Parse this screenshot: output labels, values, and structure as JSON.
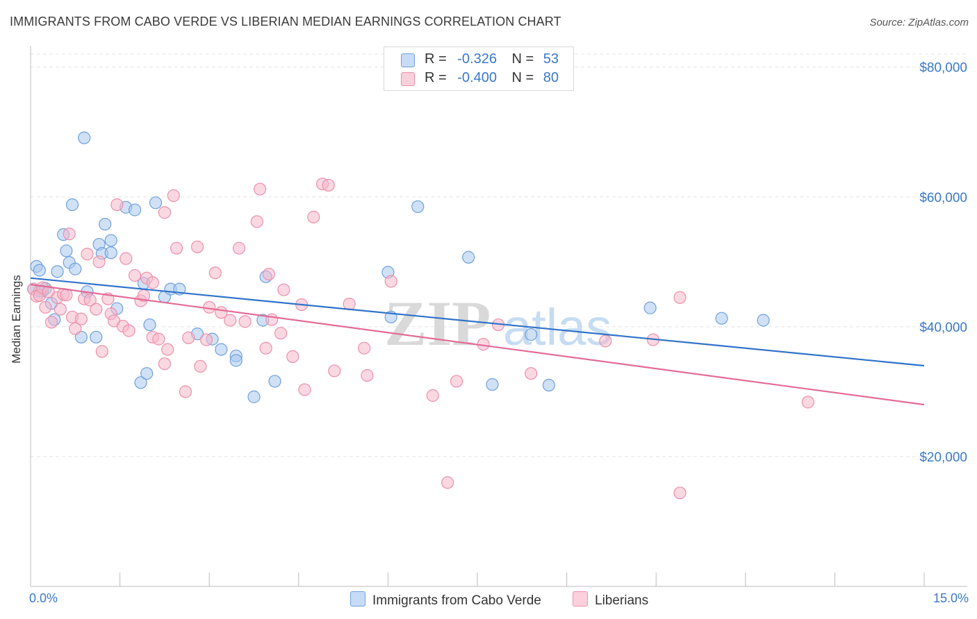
{
  "header": {
    "title": "IMMIGRANTS FROM CABO VERDE VS LIBERIAN MEDIAN EARNINGS CORRELATION CHART",
    "source": "Source: ZipAtlas.com"
  },
  "watermark": "ZIPatlas",
  "legend_top": {
    "rows": [
      {
        "r_label": "R =",
        "r_value": "-0.326",
        "n_label": "N =",
        "n_value": "53",
        "color": "#a9c8ee"
      },
      {
        "r_label": "R =",
        "r_value": "-0.400",
        "n_label": "N =",
        "n_value": "80",
        "color": "#f5b8cb"
      }
    ]
  },
  "legend_bottom": [
    {
      "label": "Immigrants from Cabo Verde",
      "color": "#a9c8ee"
    },
    {
      "label": "Liberians",
      "color": "#f5b8cb"
    }
  ],
  "chart_data": {
    "type": "scatter",
    "title": "IMMIGRANTS FROM CABO VERDE VS LIBERIAN MEDIAN EARNINGS CORRELATION CHART",
    "xlabel": "",
    "ylabel": "Median Earnings",
    "xlim": [
      0,
      15
    ],
    "ylim": [
      0,
      82000
    ],
    "x_tick_labels": [
      "0.0%",
      "15.0%"
    ],
    "y_ticks": [
      20000,
      40000,
      60000,
      80000
    ],
    "y_tick_labels": [
      "$20,000",
      "$40,000",
      "$60,000",
      "$80,000"
    ],
    "grid": true,
    "legend_position": "top-center",
    "series": [
      {
        "name": "Immigrants from Cabo Verde",
        "color": "#6fa0dc",
        "fill": "#a9c8ee",
        "trend": {
          "x": [
            0,
            15
          ],
          "y": [
            47500,
            34000
          ],
          "color": "#2f72c9"
        },
        "points": [
          [
            0.05,
            45800
          ],
          [
            0.1,
            49300
          ],
          [
            0.15,
            48700
          ],
          [
            0.2,
            45500
          ],
          [
            0.25,
            45900
          ],
          [
            0.35,
            43600
          ],
          [
            0.4,
            41100
          ],
          [
            0.45,
            48500
          ],
          [
            0.55,
            54200
          ],
          [
            0.6,
            51700
          ],
          [
            0.65,
            49900
          ],
          [
            0.7,
            58800
          ],
          [
            0.75,
            48900
          ],
          [
            0.85,
            38400
          ],
          [
            0.95,
            45400
          ],
          [
            1.1,
            38400
          ],
          [
            1.15,
            52700
          ],
          [
            1.2,
            51300
          ],
          [
            1.25,
            55800
          ],
          [
            1.35,
            53300
          ],
          [
            1.35,
            51400
          ],
          [
            1.45,
            42800
          ],
          [
            1.6,
            58400
          ],
          [
            1.75,
            58000
          ],
          [
            1.85,
            31400
          ],
          [
            1.9,
            46700
          ],
          [
            1.95,
            32800
          ],
          [
            2.0,
            40300
          ],
          [
            2.1,
            59100
          ],
          [
            2.25,
            44600
          ],
          [
            2.35,
            45800
          ],
          [
            2.5,
            45800
          ],
          [
            2.8,
            38900
          ],
          [
            3.05,
            38100
          ],
          [
            3.2,
            36500
          ],
          [
            3.45,
            35500
          ],
          [
            3.45,
            34800
          ],
          [
            3.75,
            29200
          ],
          [
            3.9,
            41000
          ],
          [
            3.95,
            47700
          ],
          [
            4.1,
            31600
          ],
          [
            0.9,
            69100
          ],
          [
            6.0,
            48400
          ],
          [
            6.05,
            41500
          ],
          [
            6.5,
            58500
          ],
          [
            7.35,
            50700
          ],
          [
            7.75,
            31100
          ],
          [
            8.4,
            38800
          ],
          [
            8.7,
            31000
          ],
          [
            10.4,
            42900
          ],
          [
            11.6,
            41300
          ],
          [
            12.3,
            41000
          ],
          [
            0.15,
            45500
          ]
        ]
      },
      {
        "name": "Liberians",
        "color": "#ec8fab",
        "fill": "#f5b8cb",
        "trend": {
          "x": [
            0,
            15
          ],
          "y": [
            46500,
            28000
          ],
          "color": "#e26b95"
        },
        "points": [
          [
            0.05,
            45800
          ],
          [
            0.1,
            44700
          ],
          [
            0.15,
            44800
          ],
          [
            0.2,
            46000
          ],
          [
            0.25,
            43000
          ],
          [
            0.3,
            45400
          ],
          [
            0.35,
            40700
          ],
          [
            0.45,
            44500
          ],
          [
            0.5,
            42700
          ],
          [
            0.55,
            45000
          ],
          [
            0.6,
            44900
          ],
          [
            0.65,
            54300
          ],
          [
            0.7,
            41500
          ],
          [
            0.75,
            39700
          ],
          [
            0.85,
            41200
          ],
          [
            0.9,
            44300
          ],
          [
            0.95,
            51200
          ],
          [
            1.0,
            44100
          ],
          [
            1.1,
            42700
          ],
          [
            1.15,
            50000
          ],
          [
            1.2,
            36200
          ],
          [
            1.3,
            44300
          ],
          [
            1.35,
            42000
          ],
          [
            1.4,
            40900
          ],
          [
            1.45,
            58800
          ],
          [
            1.55,
            40100
          ],
          [
            1.6,
            50500
          ],
          [
            1.65,
            39400
          ],
          [
            1.75,
            47900
          ],
          [
            1.85,
            44000
          ],
          [
            1.9,
            44800
          ],
          [
            1.95,
            47500
          ],
          [
            2.05,
            46800
          ],
          [
            2.05,
            38400
          ],
          [
            2.15,
            38100
          ],
          [
            2.25,
            34300
          ],
          [
            2.25,
            57600
          ],
          [
            2.3,
            36500
          ],
          [
            2.4,
            60200
          ],
          [
            2.45,
            52100
          ],
          [
            2.6,
            30000
          ],
          [
            2.65,
            38300
          ],
          [
            2.8,
            52300
          ],
          [
            2.85,
            33900
          ],
          [
            2.95,
            38000
          ],
          [
            3.0,
            43000
          ],
          [
            3.1,
            48300
          ],
          [
            3.2,
            42200
          ],
          [
            3.35,
            41000
          ],
          [
            3.5,
            52100
          ],
          [
            3.6,
            40800
          ],
          [
            3.8,
            56200
          ],
          [
            3.85,
            61200
          ],
          [
            3.95,
            36700
          ],
          [
            4.0,
            48100
          ],
          [
            4.05,
            41100
          ],
          [
            4.2,
            39000
          ],
          [
            4.25,
            45700
          ],
          [
            4.4,
            35400
          ],
          [
            4.55,
            43400
          ],
          [
            4.6,
            30300
          ],
          [
            4.75,
            56900
          ],
          [
            4.9,
            62000
          ],
          [
            5.0,
            61800
          ],
          [
            5.1,
            33200
          ],
          [
            5.35,
            43500
          ],
          [
            5.6,
            36700
          ],
          [
            5.65,
            32500
          ],
          [
            6.05,
            47000
          ],
          [
            6.75,
            29400
          ],
          [
            7.0,
            16000
          ],
          [
            7.15,
            31600
          ],
          [
            7.6,
            37300
          ],
          [
            7.85,
            40300
          ],
          [
            8.4,
            32800
          ],
          [
            9.65,
            37800
          ],
          [
            10.45,
            38000
          ],
          [
            10.9,
            44500
          ],
          [
            10.9,
            14400
          ],
          [
            13.05,
            28400
          ]
        ]
      }
    ]
  }
}
